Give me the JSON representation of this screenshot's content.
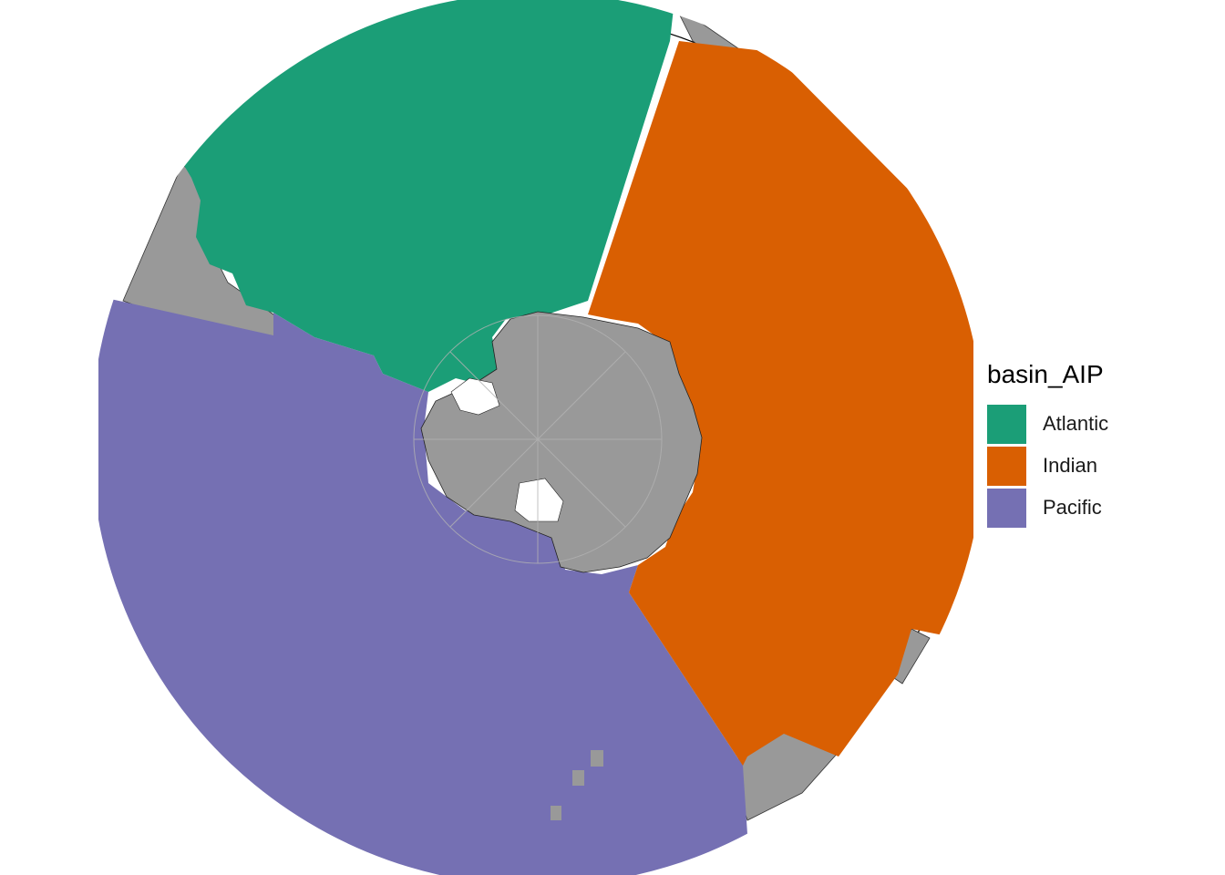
{
  "map": {
    "projection": "south-polar stereographic",
    "land_color": "#999999",
    "graticule_color": "#b3b3b3",
    "regions": [
      {
        "name": "Atlantic",
        "color": "#1b9e77"
      },
      {
        "name": "Indian",
        "color": "#d95f02"
      },
      {
        "name": "Pacific",
        "color": "#7570b3"
      }
    ]
  },
  "legend": {
    "title": "basin_AIP",
    "items": [
      {
        "label": "Atlantic",
        "color": "#1b9e77"
      },
      {
        "label": "Indian",
        "color": "#d95f02"
      },
      {
        "label": "Pacific",
        "color": "#7570b3"
      }
    ]
  }
}
